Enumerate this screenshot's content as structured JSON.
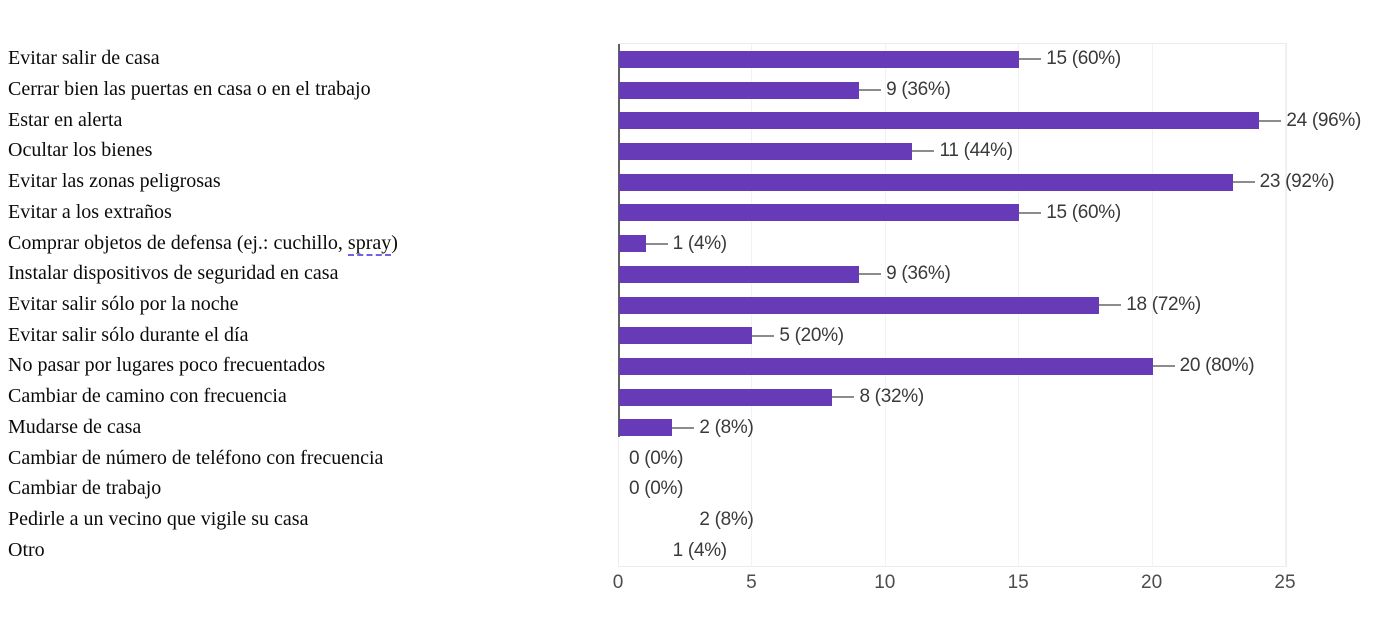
{
  "chart_data": {
    "type": "bar",
    "orientation": "horizontal",
    "title": "",
    "xlabel": "",
    "ylabel": "",
    "categories": [
      "Evitar salir de casa",
      "Cerrar bien las puertas en casa o en el trabajo",
      "Estar en alerta",
      "Ocultar los bienes",
      "Evitar las zonas peligrosas",
      "Evitar a los extraños",
      "Comprar objetos de defensa (ej.: cuchillo, spray)",
      "Instalar dispositivos de seguridad en casa",
      "Evitar salir sólo por la noche",
      "Evitar salir sólo durante el día",
      "No pasar por lugares poco frecuentados",
      "Cambiar de camino con frecuencia",
      "Mudarse de casa",
      "Cambiar de número de teléfono con frecuencia",
      "Cambiar de trabajo",
      "Pedirle a un vecino que vigile su casa",
      "Otro"
    ],
    "values": [
      15,
      9,
      24,
      11,
      23,
      15,
      1,
      9,
      18,
      5,
      20,
      8,
      2,
      0,
      0,
      2,
      1
    ],
    "percentages": [
      60,
      36,
      96,
      44,
      92,
      60,
      4,
      36,
      72,
      20,
      80,
      32,
      8,
      0,
      0,
      8,
      4
    ],
    "value_labels": [
      "15 (60%)",
      "9 (36%)",
      "24 (96%)",
      "11 (44%)",
      "23 (92%)",
      "15 (60%)",
      "1 (4%)",
      "9 (36%)",
      "18 (72%)",
      "5 (20%)",
      "20 (80%)",
      "8 (32%)",
      "2 (8%)",
      "0 (0%)",
      "0 (0%)",
      "2 (8%)",
      "1 (4%)"
    ],
    "x_ticks": [
      0,
      5,
      10,
      15,
      20,
      25
    ],
    "xlim": [
      0,
      25
    ],
    "grid": true,
    "legend": false,
    "bar_color": "#673ab7",
    "connector_color": "#8c8c8c",
    "axis_line_color": "#606060",
    "gridline_color": "#f2f2f2",
    "hidden_bar_indexes": [
      15,
      16
    ]
  },
  "annotations": {
    "spellcheck_words": [
      "spray"
    ],
    "spellcheck_underline_color": "#6e62e5"
  }
}
